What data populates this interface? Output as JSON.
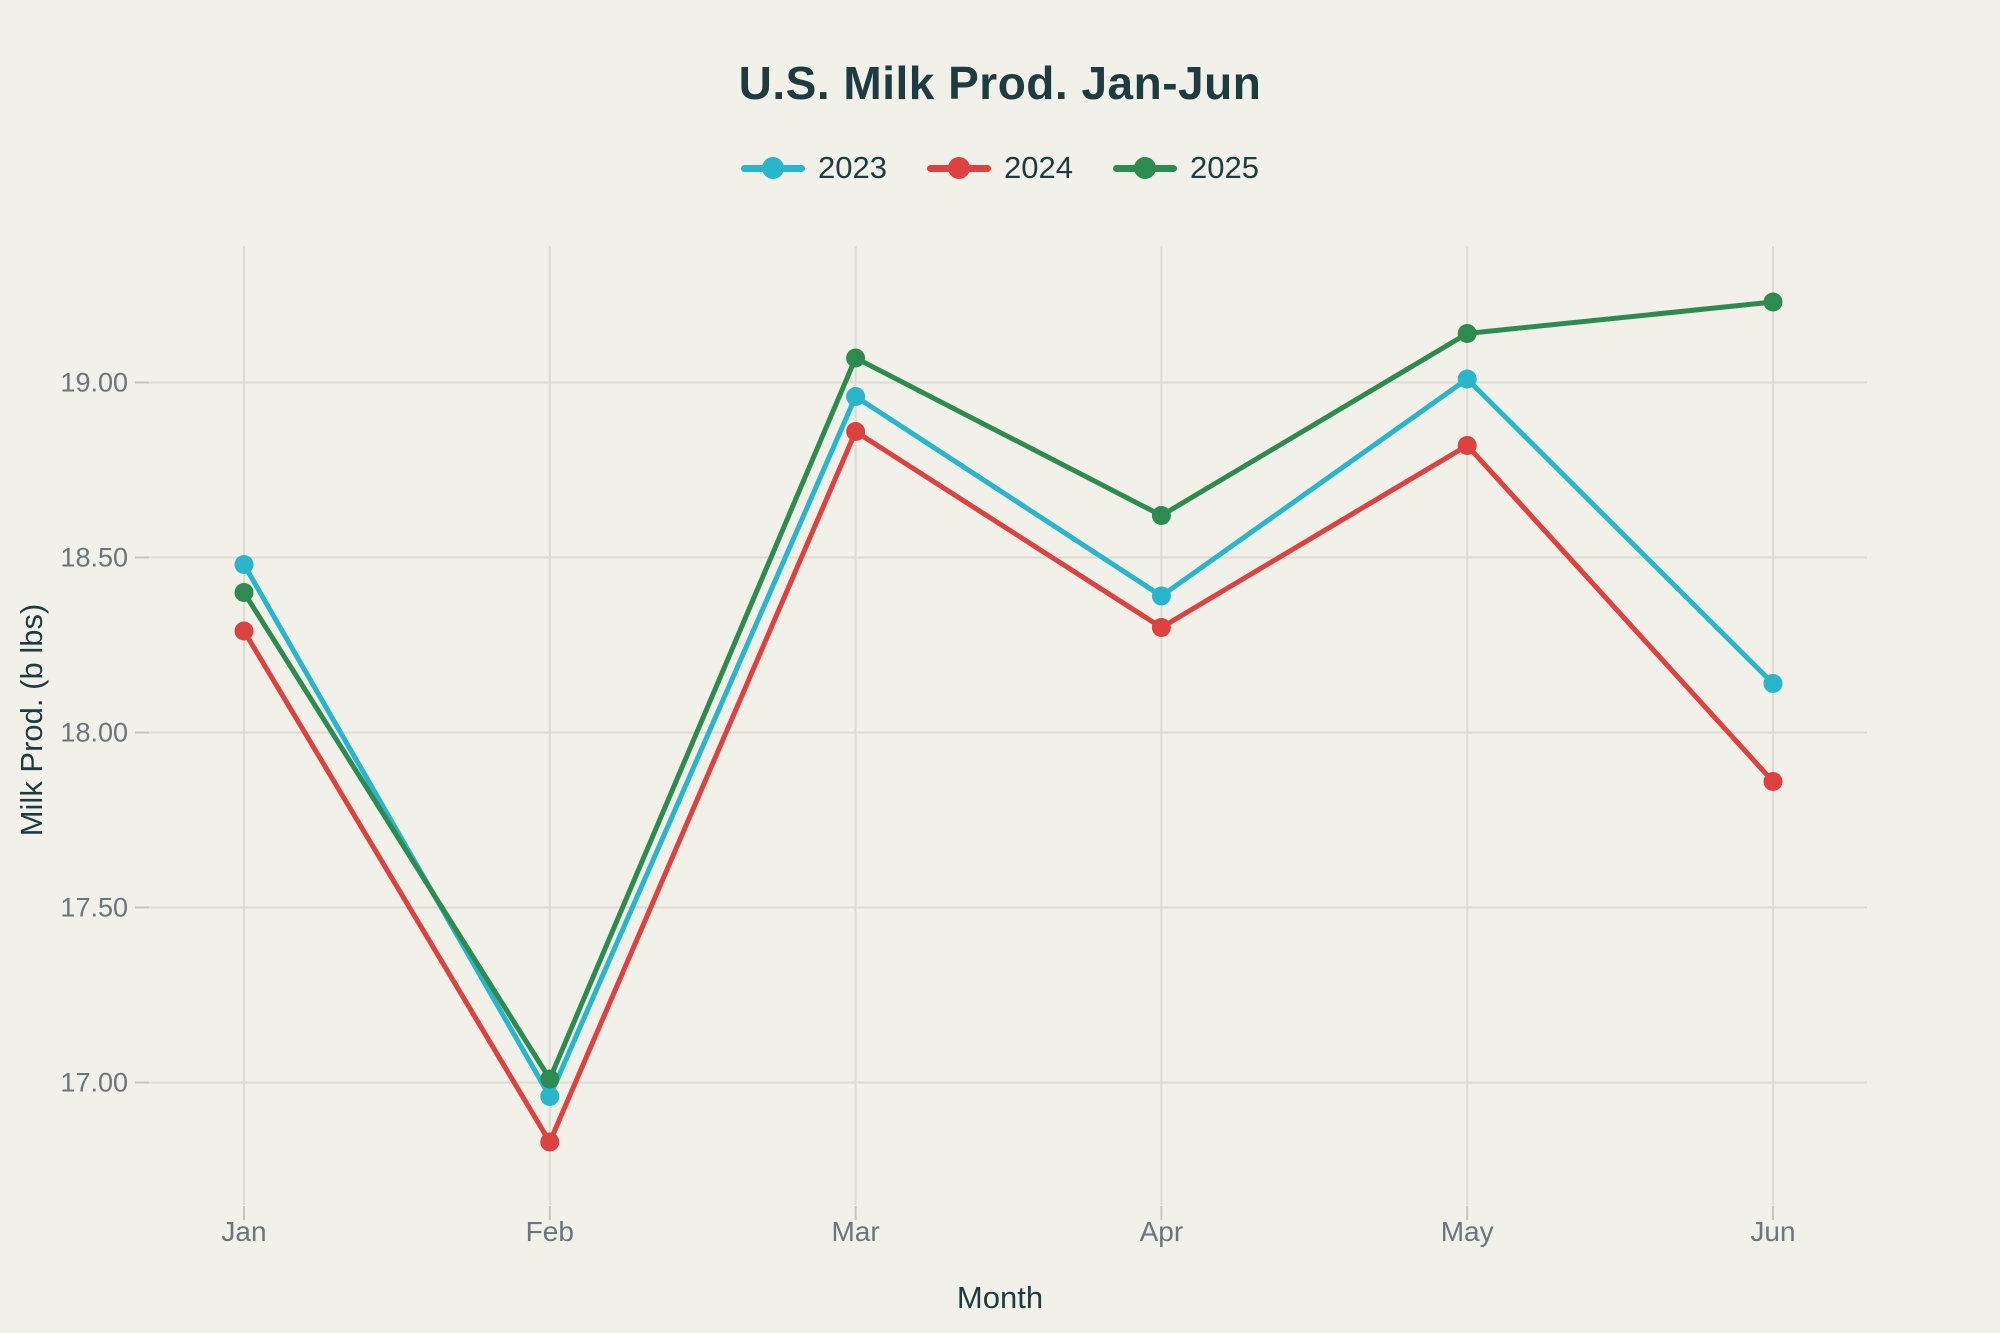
{
  "chart_data": {
    "type": "line",
    "title": "U.S. Milk Prod. Jan-Jun",
    "xlabel": "Month",
    "ylabel": "Milk Prod. (b lbs)",
    "categories": [
      "Jan",
      "Feb",
      "Mar",
      "Apr",
      "May",
      "Jun"
    ],
    "series": [
      {
        "name": "2023",
        "color": "#29b6cd",
        "values": [
          18.48,
          16.96,
          18.96,
          18.39,
          19.01,
          18.14
        ]
      },
      {
        "name": "2024",
        "color": "#dd4140",
        "values": [
          18.29,
          16.83,
          18.86,
          18.3,
          18.82,
          17.86
        ]
      },
      {
        "name": "2025",
        "color": "#2e8b4f",
        "values": [
          18.4,
          17.01,
          19.07,
          18.62,
          19.14,
          19.23
        ]
      }
    ],
    "yticks": [
      17.0,
      17.5,
      18.0,
      18.5,
      19.0
    ],
    "ytick_labels": [
      "17.00",
      "17.50",
      "18.00",
      "18.50",
      "19.00"
    ],
    "ylim": [
      16.65,
      19.39
    ],
    "grid": true,
    "legend_position": "top",
    "marker": "circle",
    "colors": {
      "background": "#f1f0e9",
      "grid": "#dddcd4",
      "tick": "#c6c6bd",
      "title": "#1d3b41",
      "tick_label": "#6a7580"
    }
  }
}
